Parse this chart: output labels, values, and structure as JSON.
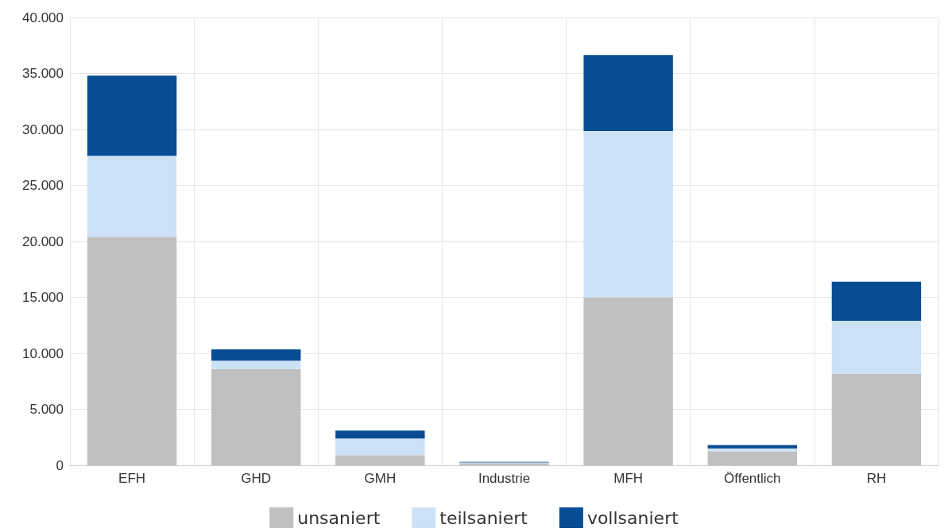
{
  "chart_data": {
    "type": "bar",
    "stacked": true,
    "categories": [
      "EFH",
      "GHD",
      "GMH",
      "Industrie",
      "MFH",
      "Öffentlich",
      "RH"
    ],
    "series": [
      {
        "name": "unsaniert",
        "color": "#c0c0c0",
        "values": [
          20400,
          8600,
          900,
          200,
          15000,
          1200,
          8150
        ]
      },
      {
        "name": "teilsaniert",
        "color": "#cce1f5",
        "values": [
          7250,
          750,
          1500,
          50,
          14850,
          300,
          4750
        ]
      },
      {
        "name": "vollsaniert",
        "color": "#084c94",
        "values": [
          7150,
          1000,
          700,
          50,
          6800,
          300,
          3500
        ]
      }
    ],
    "ylim": [
      0,
      40000
    ],
    "yticks": [
      0,
      {
        "value": 5000,
        "label": "5.000"
      },
      {
        "value": 10000,
        "label": "10.000"
      },
      {
        "value": 15000,
        "label": "15.000"
      },
      {
        "value": 20000,
        "label": "20.000"
      },
      {
        "value": 25000,
        "label": "25.000"
      },
      {
        "value": 30000,
        "label": "30.000"
      },
      {
        "value": 35000,
        "label": "35.000"
      },
      {
        "value": 40000,
        "label": "40.000"
      }
    ],
    "grid": true,
    "legend": "bottom"
  }
}
